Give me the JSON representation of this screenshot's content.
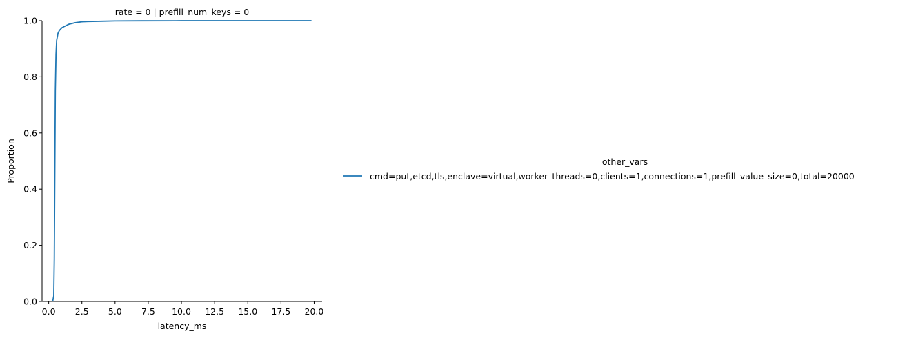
{
  "chart_data": {
    "type": "line",
    "title": "rate = 0 | prefill_num_keys = 0",
    "xlabel": "latency_ms",
    "ylabel": "Proportion",
    "xlim": [
      -0.5,
      20.6
    ],
    "ylim": [
      0,
      1.0
    ],
    "xticks": [
      "0.0",
      "2.5",
      "5.0",
      "7.5",
      "10.0",
      "12.5",
      "15.0",
      "17.5",
      "20.0"
    ],
    "yticks": [
      "0.0",
      "0.2",
      "0.4",
      "0.6",
      "0.8",
      "1.0"
    ],
    "grid": false,
    "legend": {
      "title": "other_vars",
      "placement": "right"
    },
    "series": [
      {
        "name": "cmd=put,etcd,tls,enclave=virtual,worker_threads=0,clients=1,connections=1,prefill_value_size=0,total=20000",
        "color": "#1f77b4",
        "x": [
          0.3,
          0.38,
          0.42,
          0.46,
          0.5,
          0.55,
          0.6,
          0.7,
          0.8,
          1.0,
          1.2,
          1.5,
          2.0,
          2.5,
          3.0,
          4.0,
          5.0,
          7.0,
          10.0,
          15.0,
          19.8
        ],
        "y": [
          0.0,
          0.02,
          0.15,
          0.45,
          0.75,
          0.88,
          0.93,
          0.955,
          0.965,
          0.975,
          0.98,
          0.987,
          0.993,
          0.996,
          0.997,
          0.998,
          0.999,
          0.9995,
          0.9998,
          0.9999,
          1.0
        ]
      }
    ]
  }
}
